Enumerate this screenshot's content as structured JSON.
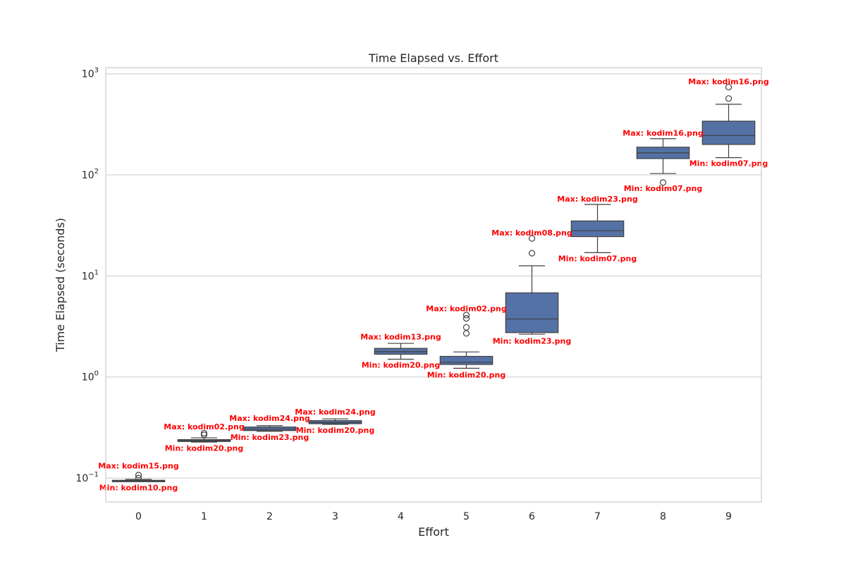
{
  "chart_data": {
    "type": "box",
    "title": "Time Elapsed vs. Effort",
    "xlabel": "Effort",
    "ylabel": "Time Elapsed (seconds)",
    "yscale": "log",
    "ylim": [
      0.058,
      1150
    ],
    "grid": true,
    "box_color": "#5572a6",
    "annotation_color": "#ff0000",
    "categories": [
      "0",
      "1",
      "2",
      "3",
      "4",
      "5",
      "6",
      "7",
      "8",
      "9"
    ],
    "y_ticks": [
      {
        "base": "10",
        "exp": "−1",
        "value": 0.1
      },
      {
        "base": "10",
        "exp": "0",
        "value": 1
      },
      {
        "base": "10",
        "exp": "1",
        "value": 10
      },
      {
        "base": "10",
        "exp": "2",
        "value": 100
      },
      {
        "base": "10",
        "exp": "3",
        "value": 1000
      }
    ],
    "boxes": [
      {
        "effort": "0",
        "whislo": 0.093,
        "q1": 0.093,
        "med": 0.094,
        "q3": 0.095,
        "whishi": 0.097,
        "fliers": [
          0.1,
          0.107
        ],
        "max_label": "Max: kodim15.png",
        "max_value": 0.117,
        "min_label": "Min: kodim10.png",
        "min_value": 0.092
      },
      {
        "effort": "1",
        "whislo": 0.227,
        "q1": 0.23,
        "med": 0.235,
        "q3": 0.24,
        "whishi": 0.25,
        "fliers": [
          0.268,
          0.278
        ],
        "max_label": "Max: kodim02.png",
        "max_value": 0.285,
        "min_label": "Min: kodim20.png",
        "min_value": 0.225
      },
      {
        "effort": "2",
        "whislo": 0.29,
        "q1": 0.295,
        "med": 0.305,
        "q3": 0.32,
        "whishi": 0.33,
        "fliers": [],
        "max_label": "Max: kodim24.png",
        "max_value": 0.345,
        "min_label": "Min: kodim23.png",
        "min_value": 0.29
      },
      {
        "effort": "3",
        "whislo": 0.34,
        "q1": 0.345,
        "med": 0.355,
        "q3": 0.37,
        "whishi": 0.385,
        "fliers": [],
        "max_label": "Max: kodim24.png",
        "max_value": 0.4,
        "min_label": "Min: kodim20.png",
        "min_value": 0.34
      },
      {
        "effort": "4",
        "whislo": 1.5,
        "q1": 1.68,
        "med": 1.78,
        "q3": 1.92,
        "whishi": 2.15,
        "fliers": [],
        "max_label": "Max: kodim13.png",
        "max_value": 2.2,
        "min_label": "Min: kodim20.png",
        "min_value": 1.5
      },
      {
        "effort": "5",
        "whislo": 1.22,
        "q1": 1.33,
        "med": 1.4,
        "q3": 1.6,
        "whishi": 1.77,
        "fliers": [
          2.7,
          3.1,
          3.8,
          4.1
        ],
        "max_label": "Max: kodim02.png",
        "max_value": 4.2,
        "min_label": "Min: kodim20.png",
        "min_value": 1.2
      },
      {
        "effort": "6",
        "whislo": 2.65,
        "q1": 2.75,
        "med": 3.75,
        "q3": 6.8,
        "whishi": 12.6,
        "fliers": [
          16.8,
          23.5
        ],
        "max_label": "Max: kodim08.png",
        "max_value": 23.5,
        "min_label": "Min: kodim23.png",
        "min_value": 2.6
      },
      {
        "effort": "7",
        "whislo": 17,
        "q1": 24.5,
        "med": 28,
        "q3": 35,
        "whishi": 51,
        "fliers": [],
        "max_label": "Max: kodim23.png",
        "max_value": 51,
        "min_label": "Min: kodim07.png",
        "min_value": 17
      },
      {
        "effort": "8",
        "whislo": 103,
        "q1": 145,
        "med": 165,
        "q3": 188,
        "whishi": 228,
        "fliers": [
          84
        ],
        "max_label": "Max: kodim16.png",
        "max_value": 228,
        "min_label": "Min: kodim07.png",
        "min_value": 84
      },
      {
        "effort": "9",
        "whislo": 148,
        "q1": 200,
        "med": 245,
        "q3": 340,
        "whishi": 500,
        "fliers": [
          570,
          740
        ],
        "max_label": "Max: kodim16.png",
        "max_value": 740,
        "min_label": "Min: kodim07.png",
        "min_value": 148
      }
    ]
  }
}
